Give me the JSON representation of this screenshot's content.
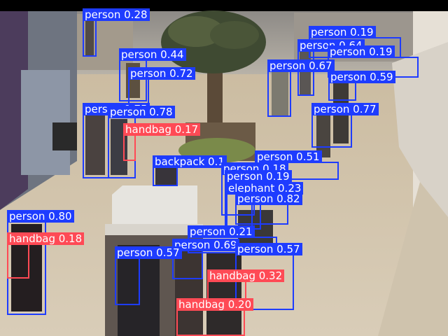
{
  "colors": {
    "person_box": "#1e3cff",
    "handbag_box": "#ff4a55",
    "label_text": "#ffffff"
  },
  "detections": [
    {
      "label": "person 0.28"
    },
    {
      "label": "person 0.44"
    },
    {
      "label": "person 0.72"
    },
    {
      "label": "person 0.75"
    },
    {
      "label": "person 0.78"
    },
    {
      "label": "handbag 0.17"
    },
    {
      "label": "person 0.19"
    },
    {
      "label": "person 0.64"
    },
    {
      "label": "person 0.19"
    },
    {
      "label": "person 0.67"
    },
    {
      "label": "person 0.59"
    },
    {
      "label": "person 0.77"
    },
    {
      "label": "backpack 0.1"
    },
    {
      "label": "person 0.51"
    },
    {
      "label": "person 0.18"
    },
    {
      "label": "person 0.19"
    },
    {
      "label": "elephant 0.23"
    },
    {
      "label": "person 0.82"
    },
    {
      "label": "person 0.80"
    },
    {
      "label": "handbag 0.18"
    },
    {
      "label": "person 0.21"
    },
    {
      "label": "person 0.69"
    },
    {
      "label": "person 0.57"
    },
    {
      "label": "person 0.57"
    },
    {
      "label": "handbag 0.32"
    },
    {
      "label": "handbag 0.20"
    }
  ]
}
